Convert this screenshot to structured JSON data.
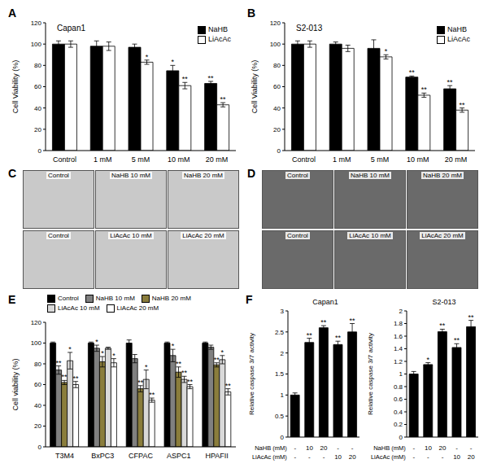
{
  "chart_data": [
    {
      "panel": "A",
      "type": "bar",
      "title": "Capan1",
      "y_label": "Cell Viability (%)",
      "categories": [
        "Control",
        "1 mM",
        "5 mM",
        "10 mM",
        "20 mM"
      ],
      "ylim": [
        0,
        120
      ],
      "yticks": [
        0,
        20,
        40,
        60,
        80,
        100,
        120
      ],
      "legend": "upper right",
      "series": [
        {
          "name": "NaHB",
          "color": "#000000",
          "values": [
            100,
            98,
            97,
            75,
            63
          ],
          "errors": [
            3,
            5,
            3,
            5,
            2
          ],
          "significance": [
            null,
            null,
            null,
            "*",
            "**"
          ]
        },
        {
          "name": "LiAcAc",
          "color": "#ffffff",
          "values": [
            100,
            98,
            83,
            61,
            43
          ],
          "errors": [
            3,
            4,
            2,
            3,
            2
          ],
          "significance": [
            null,
            null,
            "*",
            "**",
            "**"
          ]
        }
      ]
    },
    {
      "panel": "B",
      "type": "bar",
      "title": "S2-013",
      "y_label": "Cell Viability (%)",
      "categories": [
        "Control",
        "1 mM",
        "5 mM",
        "10 mM",
        "20 mM"
      ],
      "ylim": [
        0,
        120
      ],
      "yticks": [
        0,
        20,
        40,
        60,
        80,
        100,
        120
      ],
      "legend": "upper right",
      "series": [
        {
          "name": "NaHB",
          "color": "#000000",
          "values": [
            100,
            100,
            96,
            69,
            58
          ],
          "errors": [
            3,
            2,
            8,
            1,
            3
          ],
          "significance": [
            null,
            null,
            null,
            "**",
            "**"
          ]
        },
        {
          "name": "LiAcAc",
          "color": "#ffffff",
          "values": [
            100,
            96,
            88,
            52,
            38
          ],
          "errors": [
            3,
            3,
            2,
            2,
            2
          ],
          "significance": [
            null,
            null,
            "*",
            "**",
            "**"
          ]
        }
      ]
    },
    {
      "panel": "C",
      "type": "image",
      "color": "#c9c9c9",
      "labels": [
        "Control",
        "NaHB 10 mM",
        "NaHB 20 mM",
        "Control",
        "LiAcAc 10 mM",
        "LiAcAc 20 mM"
      ]
    },
    {
      "panel": "D",
      "type": "image",
      "color": "#6a6a6a",
      "labels": [
        "Control",
        "NaHB 10 mM",
        "NaHB 20 mM",
        "Control",
        "LiAcAc 10 mM",
        "LiAcAc 20 mM"
      ]
    },
    {
      "panel": "E",
      "type": "bar",
      "y_label": "Cell viability (%)",
      "categories": [
        "T3M4",
        "BxPC3",
        "CFPAC",
        "ASPC1",
        "HPAFII"
      ],
      "ylim": [
        0,
        120
      ],
      "yticks": [
        0,
        20,
        40,
        60,
        80,
        100,
        120
      ],
      "legend": "upper center",
      "series": [
        {
          "name": "Control",
          "color": "#000000",
          "values": [
            100,
            100,
            100,
            100,
            100
          ],
          "errors": [
            1,
            1,
            3,
            1,
            1
          ],
          "significance": [
            null,
            null,
            null,
            null,
            null
          ]
        },
        {
          "name": "NaHB 10 mM",
          "color": "#808080",
          "values": [
            74,
            95,
            85,
            88,
            96
          ],
          "errors": [
            4,
            3,
            4,
            6,
            2
          ],
          "significance": [
            "**",
            "*",
            null,
            "*",
            null
          ]
        },
        {
          "name": "NaHB 20 mM",
          "color": "#8a7d3c",
          "values": [
            62,
            82,
            56,
            72,
            79
          ],
          "errors": [
            2,
            5,
            3,
            5,
            2
          ],
          "significance": [
            "**",
            "*",
            "**",
            "**",
            "**"
          ]
        },
        {
          "name": "LiAcAc 10 mM",
          "color": "#d9d9d9",
          "values": [
            83,
            95,
            65,
            65,
            84
          ],
          "errors": [
            8,
            1,
            9,
            3,
            4
          ],
          "significance": [
            "*",
            null,
            "*",
            "**",
            "*"
          ]
        },
        {
          "name": "LiAcAc 20 mM",
          "color": "#ffffff",
          "values": [
            60,
            81,
            45,
            58,
            53
          ],
          "errors": [
            3,
            4,
            2,
            2,
            3
          ],
          "significance": [
            "**",
            "*",
            "**",
            "**",
            "**"
          ]
        }
      ]
    },
    {
      "panel": "F",
      "type": "bar",
      "title": "Capan1",
      "y_label": "Relative caspase 3/7 activity",
      "categories": [
        null,
        null,
        null,
        null,
        null
      ],
      "table": [
        {
          "label": "NaHB (mM)",
          "values": [
            "-",
            "10",
            "20",
            "-",
            "-"
          ]
        },
        {
          "label": "LiAcAc (mM)",
          "values": [
            "-",
            "-",
            "-",
            "10",
            "20"
          ]
        }
      ],
      "ylim": [
        0,
        3
      ],
      "yticks": [
        0,
        0.5,
        1,
        1.5,
        2,
        2.5,
        3
      ],
      "series": [
        {
          "color": "#000000",
          "values": [
            1,
            2.25,
            2.6,
            2.2,
            2.5
          ],
          "errors": [
            0.05,
            0.1,
            0.05,
            0.08,
            0.2
          ],
          "significance": [
            null,
            "**",
            "**",
            "**",
            "**"
          ]
        }
      ]
    },
    {
      "type": "bar",
      "title": "S2-013",
      "y_label": "Relative caspase 3/7 activity",
      "categories": [
        null,
        null,
        null,
        null,
        null
      ],
      "table": [
        {
          "label": "NaHB (mM)",
          "values": [
            "-",
            "10",
            "20",
            "-",
            "-"
          ]
        },
        {
          "label": "LiAcAc (mM)",
          "values": [
            "-",
            "-",
            "-",
            "10",
            "20"
          ]
        }
      ],
      "ylim": [
        0,
        2
      ],
      "yticks": [
        0,
        0.2,
        0.4,
        0.6,
        0.8,
        1,
        1.2,
        1.4,
        1.6,
        1.8,
        2
      ],
      "series": [
        {
          "color": "#000000",
          "values": [
            1,
            1.15,
            1.67,
            1.42,
            1.75
          ],
          "errors": [
            0.04,
            0.03,
            0.04,
            0.06,
            0.1
          ],
          "significance": [
            null,
            "*",
            "**",
            "**",
            "**"
          ]
        }
      ]
    }
  ]
}
